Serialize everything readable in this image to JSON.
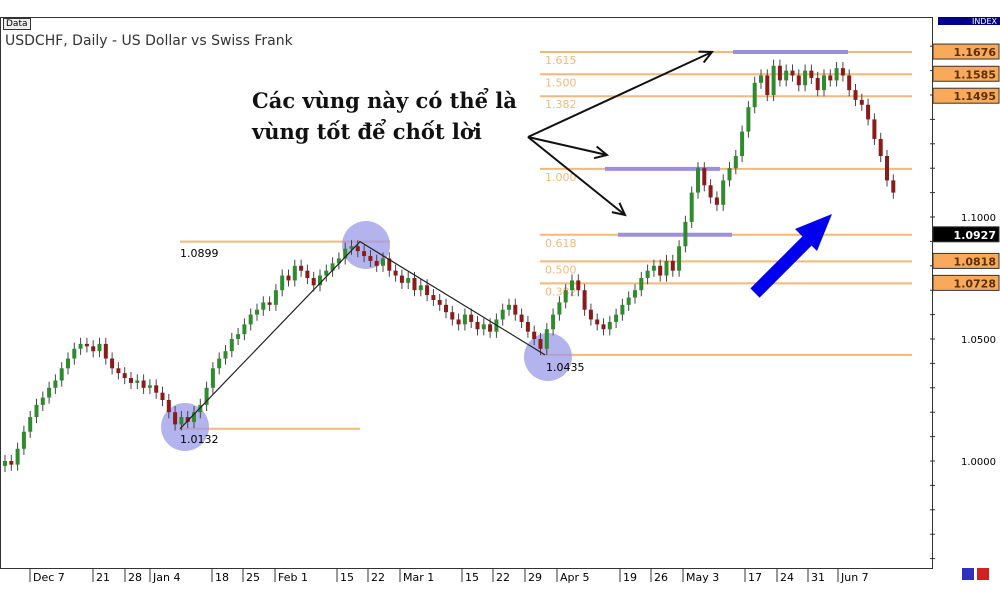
{
  "header": {
    "data_label": "Data",
    "title": "USDCHF, Daily - US Dollar vs Swiss Frank",
    "index_label": "INDEX"
  },
  "annotation": {
    "text": "Các vùng này có thể là\nvùng tốt để chốt lời"
  },
  "colors": {
    "bull": "#2e8b2e",
    "bear": "#8b1a1a",
    "fib": "#f5b77a",
    "zone": "#9a8fe0",
    "circle": "#9a9ae8",
    "arrow_blue": "#0000ee",
    "axis_box": "#f9a95a"
  },
  "chart_data": {
    "type": "candlestick",
    "title": "USDCHF, Daily - US Dollar vs Swiss Frank",
    "ylim": [
      0.9555,
      1.183
    ],
    "y_ticks": [
      "1.1000",
      "1.0500",
      "1.0000"
    ],
    "x_tick_labels": [
      "Dec 7",
      "21",
      "28",
      "Jan 4",
      "18",
      "25",
      "Feb 1",
      "15",
      "22",
      "Mar 1",
      "15",
      "22",
      "29",
      "Apr 5",
      "19",
      "26",
      "May 3",
      "17",
      "24",
      "31",
      "Jun 7"
    ],
    "closes": [
      1.0,
      0.9985,
      1.005,
      1.012,
      1.018,
      1.023,
      1.026,
      1.03,
      1.033,
      1.038,
      1.042,
      1.046,
      1.048,
      1.047,
      1.045,
      1.048,
      1.042,
      1.038,
      1.036,
      1.034,
      1.032,
      1.033,
      1.03,
      1.031,
      1.028,
      1.025,
      1.02,
      1.015,
      1.018,
      1.016,
      1.02,
      1.023,
      1.03,
      1.038,
      1.042,
      1.045,
      1.05,
      1.052,
      1.056,
      1.06,
      1.062,
      1.065,
      1.064,
      1.07,
      1.076,
      1.074,
      1.08,
      1.078,
      1.075,
      1.072,
      1.076,
      1.078,
      1.081,
      1.083,
      1.087,
      1.088,
      1.086,
      1.084,
      1.082,
      1.08,
      1.083,
      1.078,
      1.076,
      1.073,
      1.075,
      1.07,
      1.072,
      1.068,
      1.066,
      1.064,
      1.061,
      1.058,
      1.056,
      1.06,
      1.057,
      1.054,
      1.056,
      1.053,
      1.058,
      1.062,
      1.064,
      1.06,
      1.057,
      1.053,
      1.05,
      1.046,
      1.054,
      1.06,
      1.065,
      1.07,
      1.074,
      1.07,
      1.062,
      1.058,
      1.056,
      1.054,
      1.057,
      1.06,
      1.064,
      1.067,
      1.07,
      1.075,
      1.078,
      1.08,
      1.076,
      1.082,
      1.078,
      1.088,
      1.098,
      1.11,
      1.12,
      1.113,
      1.108,
      1.105,
      1.115,
      1.12,
      1.125,
      1.135,
      1.145,
      1.155,
      1.158,
      1.15,
      1.162,
      1.156,
      1.16,
      1.158,
      1.154,
      1.16,
      1.157,
      1.152,
      1.158,
      1.156,
      1.161,
      1.158,
      1.152,
      1.148,
      1.146,
      1.14,
      1.132,
      1.125,
      1.115,
      1.11
    ],
    "swing_points": [
      {
        "label": "1.0132",
        "price": 1.0132
      },
      {
        "label": "1.0899",
        "price": 1.0899
      },
      {
        "label": "1.0435",
        "price": 1.0435
      }
    ],
    "fib_levels": [
      {
        "label": "1.615",
        "price": 1.1676,
        "axis_label": "1.1676"
      },
      {
        "label": "1.500",
        "price": 1.1585,
        "axis_label": "1.1585"
      },
      {
        "label": "1.382",
        "price": 1.1495,
        "axis_label": "1.1495"
      },
      {
        "label": "1.000",
        "price": 1.1197
      },
      {
        "label": "0.618",
        "price": 1.0927,
        "axis_label": "1.0927"
      },
      {
        "label": "0.500",
        "price": 1.0818,
        "axis_label": "1.0818"
      },
      {
        "label": "0.382",
        "price": 1.0728,
        "axis_label": "1.0728"
      }
    ],
    "current_price": "1.0927"
  }
}
